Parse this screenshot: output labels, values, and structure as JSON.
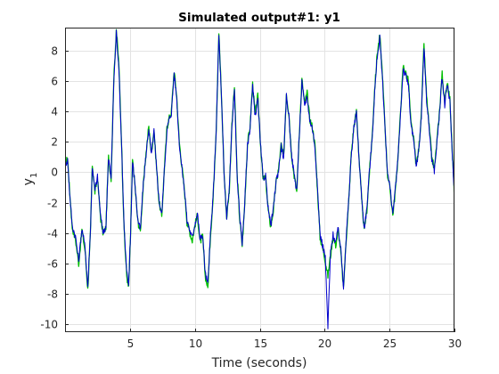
{
  "chart_data": {
    "type": "line",
    "title": "Simulated output#1: y1",
    "xlabel": "Time (seconds)",
    "ylabel": "y",
    "ylabel_subscript": "1",
    "xlim": [
      0,
      30
    ],
    "ylim": [
      -10.5,
      9.5
    ],
    "xticks": [
      5,
      10,
      15,
      20,
      25,
      30
    ],
    "xtick_labels": [
      "5",
      "10",
      "15",
      "20",
      "25",
      "30"
    ],
    "yticks": [
      -10,
      -8,
      -6,
      -4,
      -2,
      0,
      2,
      4,
      6,
      8
    ],
    "ytick_labels": [
      "-10",
      "-8",
      "-6",
      "-4",
      "-2",
      "0",
      "2",
      "4",
      "6",
      "8"
    ],
    "grid": true,
    "legend": "none",
    "series": [
      {
        "color": "#00c000",
        "x": [
          0,
          0.2,
          0.35,
          0.55,
          0.8,
          1.05,
          1.3,
          1.55,
          1.75,
          1.95,
          2.1,
          2.3,
          2.5,
          2.75,
          2.95,
          3.15,
          3.35,
          3.55,
          3.75,
          3.95,
          4.15,
          4.35,
          4.55,
          4.75,
          4.9,
          5.05,
          5.2,
          5.4,
          5.6,
          5.8,
          6.0,
          6.2,
          6.45,
          6.65,
          6.85,
          7.05,
          7.25,
          7.45,
          7.65,
          7.85,
          8.0,
          8.2,
          8.4,
          8.6,
          8.8,
          9.0,
          9.2,
          9.4,
          9.6,
          9.8,
          10.0,
          10.2,
          10.4,
          10.6,
          10.8,
          11.0,
          11.2,
          11.4,
          11.65,
          11.85,
          12.05,
          12.25,
          12.45,
          12.65,
          12.85,
          13.05,
          13.25,
          13.45,
          13.65,
          13.85,
          14.05,
          14.25,
          14.45,
          14.65,
          14.85,
          15.05,
          15.25,
          15.45,
          15.65,
          15.85,
          16.05,
          16.25,
          16.45,
          16.65,
          16.85,
          17.05,
          17.25,
          17.45,
          17.65,
          17.85,
          18.05,
          18.25,
          18.45,
          18.65,
          18.85,
          19.05,
          19.25,
          19.45,
          19.65,
          19.85,
          20.05,
          20.25,
          20.45,
          20.65,
          20.85,
          21.05,
          21.25,
          21.45,
          21.65,
          21.85,
          22.05,
          22.25,
          22.45,
          22.65,
          22.85,
          23.05,
          23.25,
          23.45,
          23.65,
          23.85,
          24.05,
          24.25,
          24.45,
          24.65,
          24.85,
          25.05,
          25.25,
          25.45,
          25.65,
          25.85,
          26.05,
          26.25,
          26.45,
          26.65,
          26.85,
          27.05,
          27.25,
          27.45,
          27.65,
          27.85,
          28.05,
          28.25,
          28.45,
          28.65,
          28.85,
          29.05,
          29.25,
          29.45,
          29.65,
          29.85,
          30.0
        ],
        "y": [
          0.6,
          0.9,
          -1.2,
          -3.6,
          -4.4,
          -6.0,
          -3.8,
          -5.2,
          -7.7,
          -4.2,
          0.5,
          -1.3,
          -0.4,
          -3.1,
          -4.1,
          -3.6,
          1.0,
          -0.4,
          6.0,
          9.4,
          7.0,
          2.0,
          -3.8,
          -6.8,
          -7.6,
          -4.0,
          0.8,
          -1.0,
          -3.2,
          -3.9,
          -1.2,
          0.9,
          3.0,
          1.2,
          2.8,
          0.3,
          -2.0,
          -2.9,
          0.2,
          2.9,
          3.5,
          4.0,
          6.7,
          5.0,
          2.0,
          0.4,
          -1.2,
          -3.3,
          -3.9,
          -4.5,
          -3.5,
          -2.8,
          -4.6,
          -4.2,
          -6.8,
          -7.6,
          -4.2,
          -1.8,
          3.0,
          9.2,
          5.0,
          0.0,
          -3.0,
          -1.2,
          3.0,
          5.6,
          0.0,
          -3.0,
          -4.8,
          -2.0,
          1.8,
          3.0,
          5.8,
          3.8,
          5.0,
          2.0,
          -0.5,
          -0.3,
          -2.5,
          -3.6,
          -2.5,
          -0.7,
          0.2,
          1.8,
          1.0,
          5.2,
          3.8,
          1.2,
          -0.2,
          -1.3,
          2.6,
          6.1,
          4.5,
          5.2,
          3.5,
          3.0,
          1.8,
          -1.2,
          -4.3,
          -5.0,
          -5.8,
          -6.8,
          -5.5,
          -4.2,
          -4.8,
          -3.8,
          -5.3,
          -7.7,
          -4.5,
          -2.0,
          1.2,
          3.0,
          4.0,
          1.0,
          -1.8,
          -3.8,
          -2.5,
          0.0,
          2.2,
          5.4,
          7.8,
          9.0,
          6.4,
          3.0,
          -0.2,
          -1.2,
          -2.8,
          -1.2,
          1.0,
          4.0,
          7.0,
          6.5,
          6.0,
          3.2,
          2.2,
          0.5,
          1.5,
          3.8,
          8.4,
          5.0,
          3.0,
          1.0,
          0.2,
          2.0,
          4.0,
          6.5,
          4.5,
          6.0,
          4.8,
          1.0,
          -1.5
        ],
        "x2": [],
        "y2": []
      },
      {
        "color": "#0000cc",
        "x": [
          0,
          0.2,
          0.35,
          0.55,
          0.8,
          1.05,
          1.3,
          1.55,
          1.75,
          1.95,
          2.1,
          2.3,
          2.5,
          2.75,
          2.95,
          3.15,
          3.35,
          3.55,
          3.75,
          3.95,
          4.15,
          4.35,
          4.55,
          4.75,
          4.9,
          5.05,
          5.2,
          5.4,
          5.6,
          5.8,
          6.0,
          6.2,
          6.45,
          6.65,
          6.85,
          7.05,
          7.25,
          7.45,
          7.65,
          7.85,
          8.0,
          8.2,
          8.4,
          8.6,
          8.8,
          9.0,
          9.2,
          9.4,
          9.6,
          9.8,
          10.0,
          10.2,
          10.4,
          10.6,
          10.8,
          11.0,
          11.2,
          11.4,
          11.65,
          11.85,
          12.05,
          12.25,
          12.45,
          12.65,
          12.85,
          13.05,
          13.25,
          13.45,
          13.65,
          13.85,
          14.05,
          14.25,
          14.45,
          14.65,
          14.85,
          15.05,
          15.25,
          15.45,
          15.65,
          15.85,
          16.05,
          16.25,
          16.45,
          16.65,
          16.85,
          17.05,
          17.25,
          17.45,
          17.65,
          17.85,
          18.05,
          18.25,
          18.45,
          18.65,
          18.85,
          19.05,
          19.25,
          19.45,
          19.65,
          19.85,
          20.05,
          20.25,
          20.45,
          20.65,
          20.85,
          21.05,
          21.25,
          21.45,
          21.65,
          21.85,
          22.05,
          22.25,
          22.45,
          22.65,
          22.85,
          23.05,
          23.25,
          23.45,
          23.65,
          23.85,
          24.05,
          24.25,
          24.45,
          24.65,
          24.85,
          25.05,
          25.25,
          25.45,
          25.65,
          25.85,
          26.05,
          26.25,
          26.45,
          26.65,
          26.85,
          27.05,
          27.25,
          27.45,
          27.65,
          27.85,
          28.05,
          28.25,
          28.45,
          28.65,
          28.85,
          29.05,
          29.25,
          29.45,
          29.65,
          29.85,
          30.0
        ],
        "y": [
          0.5,
          0.8,
          -1.3,
          -3.5,
          -4.2,
          -5.8,
          -3.7,
          -5.0,
          -7.5,
          -4.0,
          0.4,
          -1.2,
          -0.3,
          -3.0,
          -4.0,
          -3.5,
          0.9,
          -0.3,
          5.8,
          9.2,
          6.8,
          1.9,
          -3.6,
          -6.6,
          -7.4,
          -3.9,
          0.7,
          -0.9,
          -3.1,
          -3.8,
          -1.1,
          0.8,
          2.9,
          1.1,
          2.7,
          0.2,
          -1.9,
          -2.8,
          0.1,
          2.8,
          3.4,
          3.9,
          6.5,
          4.9,
          1.9,
          0.3,
          -1.1,
          -3.2,
          -3.8,
          -4.3,
          -3.4,
          -2.7,
          -4.4,
          -4.1,
          -6.6,
          -7.4,
          -4.1,
          -1.7,
          2.9,
          9.0,
          4.9,
          -0.1,
          -2.9,
          -1.1,
          2.9,
          5.4,
          -0.1,
          -2.9,
          -4.6,
          -1.9,
          1.7,
          2.9,
          5.6,
          3.7,
          4.8,
          1.9,
          -0.4,
          -0.2,
          -2.4,
          -3.5,
          -2.4,
          -0.6,
          0.1,
          1.7,
          0.9,
          5.0,
          3.7,
          1.1,
          -0.1,
          -1.2,
          2.5,
          5.9,
          4.4,
          5.0,
          3.4,
          2.9,
          1.7,
          -1.1,
          -4.1,
          -4.8,
          -5.6,
          -10.2,
          -5.3,
          -4.1,
          -4.6,
          -3.7,
          -5.1,
          -7.5,
          -4.4,
          -1.9,
          1.1,
          2.9,
          3.9,
          0.9,
          -1.7,
          -3.7,
          -2.4,
          0.1,
          2.1,
          5.2,
          7.6,
          8.8,
          6.2,
          2.9,
          -0.1,
          -1.1,
          -2.7,
          -1.1,
          0.9,
          3.9,
          6.8,
          6.3,
          5.8,
          3.1,
          2.1,
          0.4,
          1.4,
          3.7,
          8.2,
          4.8,
          2.9,
          0.9,
          0.1,
          1.9,
          3.9,
          6.3,
          4.4,
          5.8,
          4.6,
          0.9,
          -1.4
        ],
        "x2": [],
        "y2": []
      }
    ]
  }
}
